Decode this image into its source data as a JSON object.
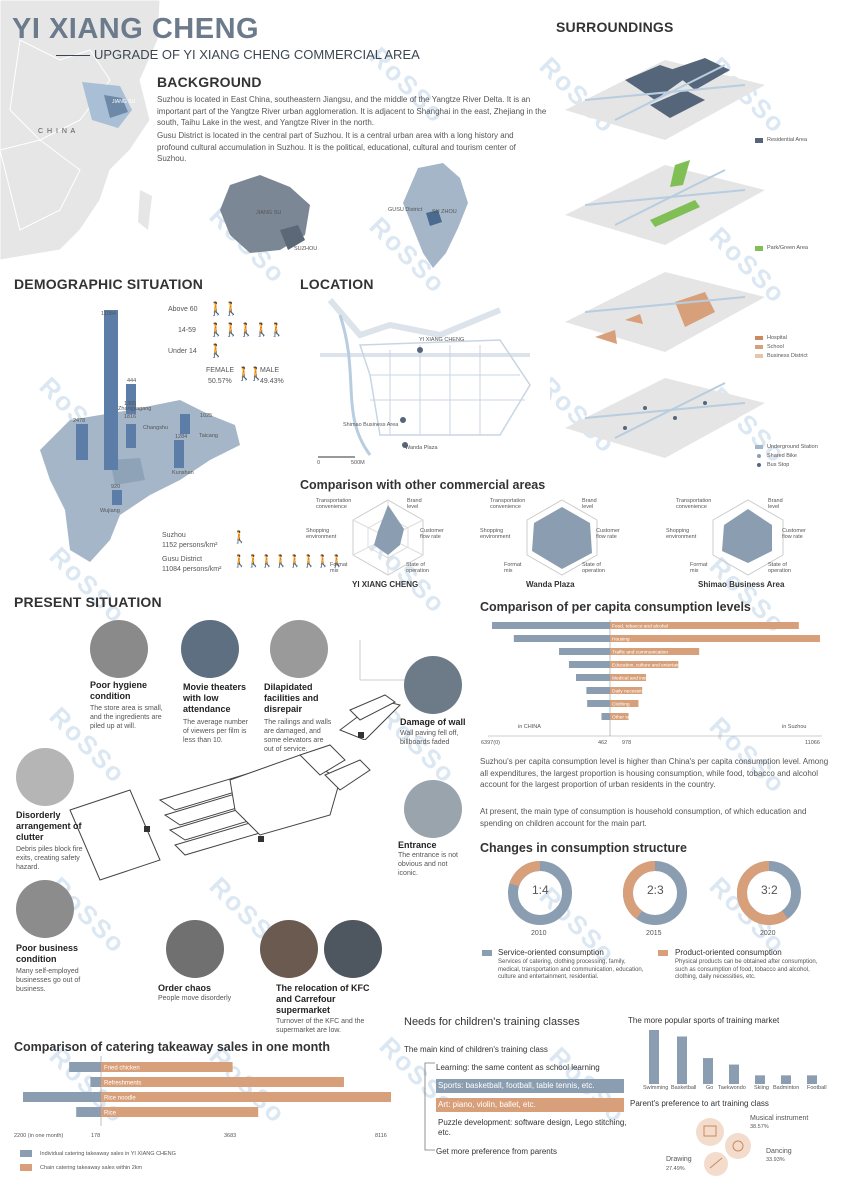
{
  "header": {
    "title": "YI XIANG CHENG",
    "subtitle": "UPGRADE OF YI XIANG CHENG COMMERCIAL AREA"
  },
  "background": {
    "title": "BACKGROUND",
    "para1": "Suzhou is located in East China, southeastern Jiangsu, and the middle of the Yangtze River Delta. It is an important part of the Yangtze River urban agglomeration. It is adjacent to Shanghai in the east, Zhejiang in the south, Taihu Lake in the west, and Yangtze River in the north.",
    "para2": "Gusu District is located in the central part of Suzhou. It is a central urban area with a long history and profound cultural accumulation in Suzhou. It is the political, educational, cultural and tourism center of Suzhou.",
    "map_labels": {
      "china": "C H I N A",
      "jiangsu": "JIANG SU",
      "jiangsu2": "JIANG SU",
      "suzhou": "SUZHOU",
      "gusu": "GUSU District",
      "suzhou2": "SU ZHOU"
    }
  },
  "surroundings": {
    "title": "SURROUNDINGS",
    "legends": [
      "Residential Area",
      "Park/Green Area",
      "Hospital",
      "School",
      "Business District",
      "Underground Station",
      "Shared Bike",
      "Bus Stop"
    ]
  },
  "demographic": {
    "title": "DEMOGRAPHIC SITUATION",
    "ages": [
      "Above 60",
      "14-59",
      "Under 14"
    ],
    "female_label": "FEMALE",
    "female_pct": "50.57%",
    "male_label": "MALE",
    "male_pct": "49.43%",
    "bar_values": [
      "11084",
      "2478",
      "444",
      "1305",
      "1816",
      "1025",
      "1284",
      "920"
    ],
    "places": [
      "Zhangjiagang",
      "Changshu",
      "Taicang",
      "Kunshan",
      "Wujiang"
    ],
    "suzhou_label": "Suzhou",
    "suzhou_density": "1152 persons/km²",
    "gusu_label": "Gusu District",
    "gusu_density": "11084 persons/km²"
  },
  "location": {
    "title": "LOCATION",
    "labels": {
      "yxc": "YI XIANG CHENG",
      "shimao": "Shimao Business Area",
      "wanda": "Wanda Plaza",
      "scale0": "0",
      "scale1": "500M"
    }
  },
  "comparison": {
    "title": "Comparison with other commercial areas",
    "axes": [
      "Transportation convenience",
      "Brand level",
      "Customer flow rate",
      "State of operation",
      "Format mix",
      "Shopping environment"
    ],
    "charts": [
      "YI XIANG CHENG",
      "Wanda Plaza",
      "Shimao Business Area"
    ]
  },
  "present": {
    "title": "PRESENT SITUATION",
    "items": [
      {
        "title": "Poor hygiene condition",
        "desc": "The store area is small, and the ingredients are piled up at will."
      },
      {
        "title": "Movie theaters with low attendance",
        "desc": "The average number of viewers per film is less than 10."
      },
      {
        "title": "Dilapidated facilities and disrepair",
        "desc": "The railings and walls are damaged, and some elevators are out of service."
      },
      {
        "title": "Damage of wall",
        "desc": "Wall paving fell off, billboards faded"
      },
      {
        "title": "Disorderly arrangement of clutter",
        "desc": "Debris piles block fire exits, creating safety hazard."
      },
      {
        "title": "Entrance",
        "desc": "The entrance is not obvious and not iconic."
      },
      {
        "title": "Poor business condition",
        "desc": "Many self-employed businesses go out of business."
      },
      {
        "title": "Order chaos",
        "desc": "People move disorderly"
      },
      {
        "title": "The relocation of KFC and Carrefour supermarket",
        "desc": "Turnover of the KFC and the supermarket are low."
      }
    ]
  },
  "per_capita": {
    "title": "Comparison of per capita consumption levels",
    "left_label": "in CHINA",
    "right_label": "in Suzhou",
    "axis": [
      "6397(0)",
      "462",
      "978",
      "11066"
    ],
    "para1": "Suzhou's per capita consumption level is higher than China's per capita consumption level. Among all expenditures, the largest proportion is housing consumption, while food, tobacco and alcohol account for the largest proportion of urban residents in the country.",
    "para2": "At present, the main type of consumption is household consumption, of which education and spending on children account for the main part."
  },
  "chart_data": [
    {
      "type": "bar",
      "title": "Comparison of per capita consumption levels",
      "categories": [
        "Food, tobacco and alcohol",
        "Housing",
        "Traffic and communication",
        "Education, culture and entertainment",
        "Medical and insurance",
        "Daily necessities and services",
        "Clothing",
        "Other supplies and services"
      ],
      "series": [
        {
          "name": "in CHINA",
          "values": [
            6397,
            5215,
            2763,
            2226,
            1843,
            1281,
            1238,
            462
          ]
        },
        {
          "name": "in Suzhou",
          "values": [
            9950,
            11066,
            4700,
            3600,
            1900,
            1700,
            1500,
            978
          ]
        }
      ]
    },
    {
      "type": "pie",
      "title": "Changes in consumption structure",
      "categories": [
        "2010",
        "2015",
        "2020"
      ],
      "ratios": [
        "1:4",
        "2:3",
        "3:2"
      ],
      "series": [
        {
          "name": "Service-oriented consumption",
          "values": [
            80,
            60,
            40
          ]
        },
        {
          "name": "Product-oriented consumption",
          "values": [
            20,
            40,
            60
          ]
        }
      ]
    },
    {
      "type": "bar",
      "title": "Comparison of catering takeaway sales in one month",
      "categories": [
        "Fried chicken",
        "Refreshments",
        "Rice noodle",
        "Rice"
      ],
      "series": [
        {
          "name": "Individual catering takeaway sales in YI XIANG CHENG",
          "values": [
            900,
            300,
            2200,
            700
          ]
        },
        {
          "name": "Chain catering takeaway sales within 2km",
          "values": [
            3683,
            6800,
            8116,
            4400
          ]
        }
      ],
      "axis": [
        "2200 (in one month)",
        "178",
        "3683",
        "8116"
      ]
    },
    {
      "type": "bar",
      "title": "The more popular sports of training market",
      "categories": [
        "Swimming",
        "Basketball",
        "Go",
        "Taekwondo",
        "Skiing",
        "Badminton",
        "Football"
      ],
      "values": [
        100,
        88,
        48,
        36,
        16,
        16,
        16
      ]
    }
  ],
  "consumption_structure": {
    "title": "Changes in consumption structure",
    "service": {
      "title": "Service-oriented consumption",
      "desc": "Services of catering, clothing processing, family, medical, transportation and communication, education, culture and entertainment, residential."
    },
    "product": {
      "title": "Product-oriented consumption",
      "desc": "Physical products can be obtained after consumption, such as consumption of food, tobacco and alcohol, clothing, daily necessities, etc."
    }
  },
  "catering": {
    "title": "Comparison of catering takeaway sales in one month",
    "legend1": "Individual catering takeaway sales in YI XIANG CHENG",
    "legend2": "Chain catering takeaway sales within 2km"
  },
  "training": {
    "title": "Needs for children's training classes",
    "subtitle": "The main kind of children's training class",
    "learning": "Learning: the same content as school learning",
    "sports": "Sports: basketball, football, table tennis, etc.",
    "art": "Art: piano, violin, ballet, etc.",
    "puzzle": "Puzzle development: software design, Lego stitching, etc.",
    "parents": "Get more preference from parents",
    "sports_title": "The more popular sports of training market",
    "art_title": "Parent's preference to art training class",
    "musical": "Musical instrument",
    "musical_pct": "38.57%",
    "dancing": "Dancing",
    "dancing_pct": "33.93%",
    "drawing": "Drawing",
    "drawing_pct": "27.49%"
  },
  "watermark": "RoSSo",
  "colors": {
    "blue": "#8b9db0",
    "orange": "#d8a07a",
    "dark": "#56667a"
  }
}
